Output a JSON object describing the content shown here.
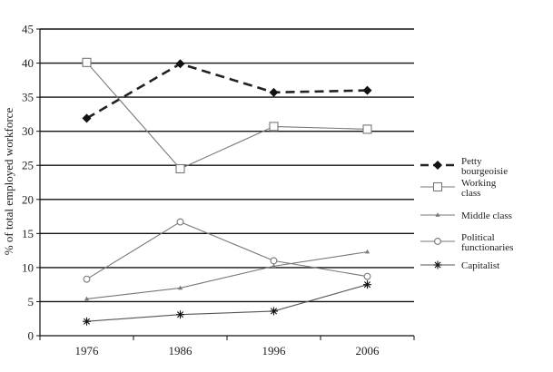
{
  "chart_data": {
    "type": "line",
    "title": "",
    "xlabel": "",
    "ylabel": "% of total employed workforce",
    "categories": [
      "1976",
      "1986",
      "1996",
      "2006"
    ],
    "ylim": [
      0,
      45
    ],
    "yticks": [
      0,
      5,
      10,
      15,
      20,
      25,
      30,
      35,
      40,
      45
    ],
    "grid": true,
    "legend_position": "right",
    "series": [
      {
        "name": "Petty bourgeoisie",
        "legend_lines": [
          "Petty",
          "bourgeoisie"
        ],
        "values": [
          31.9,
          39.9,
          35.7,
          36.0
        ],
        "marker": "diamond",
        "dashed": true,
        "color": "#222222"
      },
      {
        "name": "Working class",
        "legend_lines": [
          "Working",
          "class"
        ],
        "values": [
          40.1,
          24.5,
          30.7,
          30.3
        ],
        "marker": "square",
        "dashed": false,
        "color": "#777777"
      },
      {
        "name": "Middle class",
        "legend_lines": [
          "Middle class"
        ],
        "values": [
          5.4,
          7.0,
          10.2,
          12.3
        ],
        "marker": "triangle",
        "dashed": false,
        "color": "#777777"
      },
      {
        "name": "Political functionaries",
        "legend_lines": [
          "Political",
          "functionaries"
        ],
        "values": [
          8.3,
          16.7,
          11.0,
          8.7
        ],
        "marker": "circle",
        "dashed": false,
        "color": "#777777"
      },
      {
        "name": "Capitalist",
        "legend_lines": [
          "Capitalist"
        ],
        "values": [
          2.1,
          3.1,
          3.6,
          7.5
        ],
        "marker": "asterisk",
        "dashed": false,
        "color": "#555555"
      }
    ]
  }
}
